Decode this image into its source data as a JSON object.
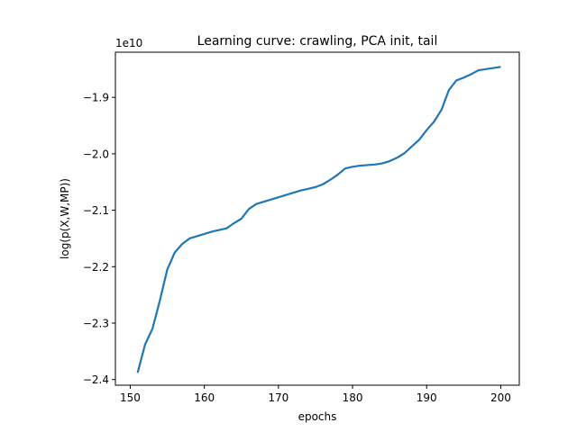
{
  "chart_data": {
    "type": "line",
    "title": "Learning curve: crawling, PCA init, tail",
    "xlabel": "epochs",
    "ylabel": "log(p(X,W,MP))",
    "offset_label": "1e10",
    "xlim": [
      148,
      202.5
    ],
    "ylim": [
      -2.41,
      -1.82
    ],
    "xticks": [
      150,
      160,
      170,
      180,
      190,
      200
    ],
    "xtick_labels": [
      "150",
      "160",
      "170",
      "180",
      "190",
      "200"
    ],
    "yticks": [
      -2.4,
      -2.3,
      -2.2,
      -2.1,
      -2.0,
      -1.9
    ],
    "ytick_labels": [
      "−2.4",
      "−2.3",
      "−2.2",
      "−2.1",
      "−2.0",
      "−1.9"
    ],
    "grid": false,
    "line_color": "#1f77b4",
    "series": [
      {
        "x": [
          151,
          152,
          153,
          154,
          155,
          156,
          157,
          158,
          159,
          160,
          161,
          162,
          163,
          164,
          165,
          166,
          167,
          168,
          169,
          170,
          171,
          172,
          173,
          174,
          175,
          176,
          177,
          178,
          179,
          180,
          181,
          182,
          183,
          184,
          185,
          186,
          187,
          188,
          189,
          190,
          191,
          192,
          193,
          194,
          195,
          196,
          197,
          198,
          199,
          200
        ],
        "y": [
          -2.388,
          -2.338,
          -2.31,
          -2.26,
          -2.205,
          -2.175,
          -2.16,
          -2.15,
          -2.146,
          -2.142,
          -2.138,
          -2.135,
          -2.132,
          -2.123,
          -2.115,
          -2.098,
          -2.089,
          -2.085,
          -2.081,
          -2.077,
          -2.073,
          -2.069,
          -2.065,
          -2.062,
          -2.059,
          -2.054,
          -2.046,
          -2.037,
          -2.026,
          -2.023,
          -2.021,
          -2.02,
          -2.019,
          -2.017,
          -2.013,
          -2.007,
          -1.999,
          -1.987,
          -1.975,
          -1.958,
          -1.943,
          -1.922,
          -1.887,
          -1.87,
          -1.865,
          -1.859,
          -1.852,
          -1.85,
          -1.848,
          -1.846
        ]
      }
    ]
  }
}
